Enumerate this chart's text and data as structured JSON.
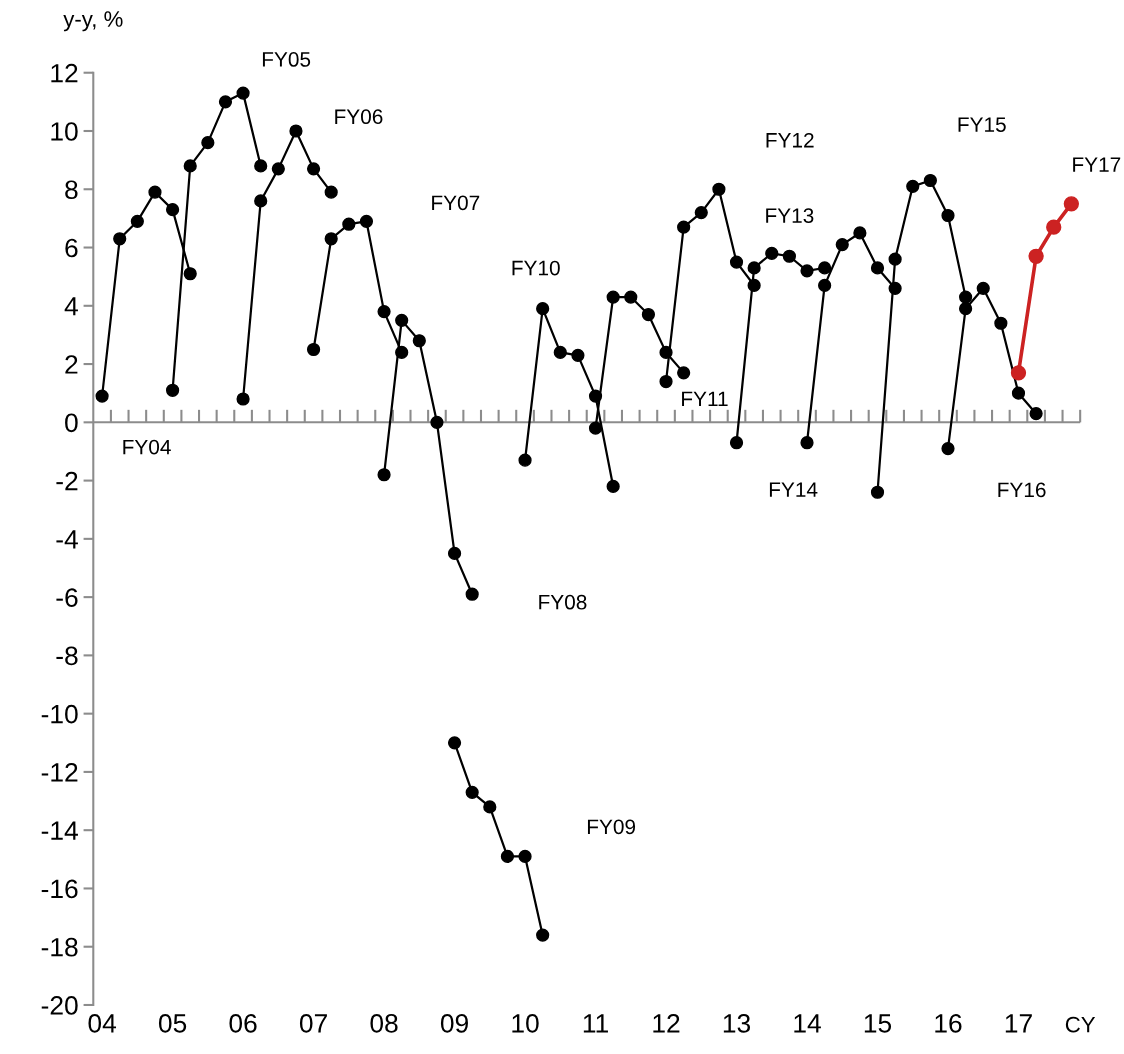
{
  "chart_data": {
    "type": "line",
    "ylabel": "y-y, %",
    "xlabel": "CY",
    "xlim": [
      3.875,
      17.875
    ],
    "ylim": [
      -20,
      12
    ],
    "yticks": [
      -20,
      -18,
      -16,
      -14,
      -12,
      -10,
      -8,
      -6,
      -4,
      -2,
      0,
      2,
      4,
      6,
      8,
      10,
      12
    ],
    "xticks": [
      {
        "value": 4,
        "label": "04"
      },
      {
        "value": 5,
        "label": "05"
      },
      {
        "value": 6,
        "label": "06"
      },
      {
        "value": 7,
        "label": "07"
      },
      {
        "value": 8,
        "label": "08"
      },
      {
        "value": 9,
        "label": "09"
      },
      {
        "value": 10,
        "label": "10"
      },
      {
        "value": 11,
        "label": "11"
      },
      {
        "value": 12,
        "label": "12"
      },
      {
        "value": 13,
        "label": "13"
      },
      {
        "value": 14,
        "label": "14"
      },
      {
        "value": 15,
        "label": "15"
      },
      {
        "value": 16,
        "label": "16"
      },
      {
        "value": 17,
        "label": "17"
      },
      {
        "value": 4.125,
        "label": null
      },
      {
        "value": 4.375,
        "label": null
      },
      {
        "value": 4.625,
        "label": null
      },
      {
        "value": 4.875,
        "label": null
      },
      {
        "value": 5.125,
        "label": null
      },
      {
        "value": 5.375,
        "label": null
      },
      {
        "value": 5.625,
        "label": null
      },
      {
        "value": 5.875,
        "label": null
      },
      {
        "value": 6.125,
        "label": null
      },
      {
        "value": 6.375,
        "label": null
      },
      {
        "value": 6.625,
        "label": null
      },
      {
        "value": 6.875,
        "label": null
      },
      {
        "value": 7.125,
        "label": null
      },
      {
        "value": 7.375,
        "label": null
      },
      {
        "value": 7.625,
        "label": null
      },
      {
        "value": 7.875,
        "label": null
      },
      {
        "value": 8.125,
        "label": null
      },
      {
        "value": 8.375,
        "label": null
      },
      {
        "value": 8.625,
        "label": null
      },
      {
        "value": 8.875,
        "label": null
      },
      {
        "value": 9.125,
        "label": null
      },
      {
        "value": 9.375,
        "label": null
      },
      {
        "value": 9.625,
        "label": null
      },
      {
        "value": 9.875,
        "label": null
      },
      {
        "value": 10.125,
        "label": null
      },
      {
        "value": 10.375,
        "label": null
      },
      {
        "value": 10.625,
        "label": null
      },
      {
        "value": 10.875,
        "label": null
      },
      {
        "value": 11.125,
        "label": null
      },
      {
        "value": 11.375,
        "label": null
      },
      {
        "value": 11.625,
        "label": null
      },
      {
        "value": 11.875,
        "label": null
      },
      {
        "value": 12.125,
        "label": null
      },
      {
        "value": 12.375,
        "label": null
      },
      {
        "value": 12.625,
        "label": null
      },
      {
        "value": 12.875,
        "label": null
      },
      {
        "value": 13.125,
        "label": null
      },
      {
        "value": 13.375,
        "label": null
      },
      {
        "value": 13.625,
        "label": null
      },
      {
        "value": 13.875,
        "label": null
      },
      {
        "value": 14.125,
        "label": null
      },
      {
        "value": 14.375,
        "label": null
      },
      {
        "value": 14.625,
        "label": null
      },
      {
        "value": 14.875,
        "label": null
      },
      {
        "value": 15.125,
        "label": null
      },
      {
        "value": 15.375,
        "label": null
      },
      {
        "value": 15.625,
        "label": null
      },
      {
        "value": 15.875,
        "label": null
      },
      {
        "value": 16.125,
        "label": null
      },
      {
        "value": 16.375,
        "label": null
      },
      {
        "value": 16.625,
        "label": null
      },
      {
        "value": 16.875,
        "label": null
      },
      {
        "value": 17.125,
        "label": null
      },
      {
        "value": 17.375,
        "label": null
      },
      {
        "value": 17.625,
        "label": null
      },
      {
        "value": 17.875,
        "label": null
      }
    ],
    "marker": "circle",
    "line_style": "solid",
    "grid": false,
    "legend": false,
    "ref_lines": [
      {
        "axis": "y",
        "value": 0,
        "color": "#8c8c8c"
      }
    ],
    "series": [
      {
        "name": "FY04",
        "color": "#000000",
        "x": [
          4,
          4.25,
          4.5,
          4.75,
          5,
          5.25
        ],
        "values": [
          0.9,
          6.3,
          6.9,
          7.9,
          7.3,
          5.1
        ]
      },
      {
        "name": "FY05",
        "color": "#000000",
        "x": [
          5,
          5.25,
          5.5,
          5.75,
          6,
          6.25
        ],
        "values": [
          1.1,
          8.8,
          9.6,
          11.0,
          11.3,
          8.8
        ]
      },
      {
        "name": "FY06",
        "color": "#000000",
        "x": [
          6,
          6.25,
          6.5,
          6.75,
          7,
          7.25
        ],
        "values": [
          0.8,
          7.6,
          8.7,
          10.0,
          8.7,
          7.9
        ]
      },
      {
        "name": "FY07",
        "color": "#000000",
        "x": [
          7,
          7.25,
          7.5,
          7.75,
          8,
          8.25
        ],
        "values": [
          2.5,
          6.3,
          6.8,
          6.9,
          3.8,
          2.4
        ]
      },
      {
        "name": "FY08",
        "color": "#000000",
        "x": [
          8,
          8.25,
          8.5,
          8.75,
          9,
          9.25
        ],
        "values": [
          -1.8,
          3.5,
          2.8,
          0.0,
          -4.5,
          -5.9
        ]
      },
      {
        "name": "FY09",
        "color": "#000000",
        "x": [
          9,
          9.25,
          9.5,
          9.75,
          10,
          10.25
        ],
        "values": [
          -11.0,
          -12.7,
          -13.2,
          -14.9,
          -14.9,
          -17.6
        ]
      },
      {
        "name": "FY10",
        "color": "#000000",
        "x": [
          10,
          10.25,
          10.5,
          10.75,
          11,
          11.25
        ],
        "values": [
          -1.3,
          3.9,
          2.4,
          2.3,
          0.9,
          -2.2
        ]
      },
      {
        "name": "FY11",
        "color": "#000000",
        "x": [
          11,
          11.25,
          11.5,
          11.75,
          12,
          12.25
        ],
        "values": [
          -0.2,
          4.3,
          4.3,
          3.7,
          2.4,
          1.7
        ]
      },
      {
        "name": "FY12",
        "color": "#000000",
        "x": [
          12,
          12.25,
          12.5,
          12.75,
          13,
          13.25
        ],
        "values": [
          1.4,
          6.7,
          7.2,
          8.0,
          5.5,
          4.7
        ]
      },
      {
        "name": "FY13",
        "color": "#000000",
        "x": [
          13,
          13.25,
          13.5,
          13.75,
          14,
          14.25
        ],
        "values": [
          -0.7,
          5.3,
          5.8,
          5.7,
          5.2,
          5.3
        ]
      },
      {
        "name": "FY14",
        "color": "#000000",
        "x": [
          14,
          14.25,
          14.5,
          14.75,
          15,
          15.25
        ],
        "values": [
          -0.7,
          4.7,
          6.1,
          6.5,
          5.3,
          4.6
        ]
      },
      {
        "name": "FY15",
        "color": "#000000",
        "x": [
          15,
          15.25,
          15.5,
          15.75,
          16,
          16.25
        ],
        "values": [
          -2.4,
          5.6,
          8.1,
          8.3,
          7.1,
          4.3
        ]
      },
      {
        "name": "FY16",
        "color": "#000000",
        "x": [
          16,
          16.25,
          16.5,
          16.75,
          17,
          17.25
        ],
        "values": [
          -0.9,
          3.9,
          4.6,
          3.4,
          1.0,
          0.3
        ]
      },
      {
        "name": "FY17",
        "color": "#cc2222",
        "x": [
          17,
          17.25,
          17.5,
          17.75
        ],
        "values": [
          1.7,
          5.7,
          6.7,
          7.5
        ]
      }
    ]
  }
}
